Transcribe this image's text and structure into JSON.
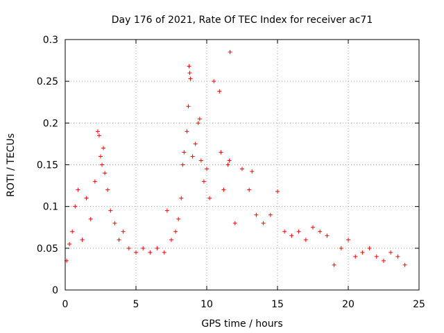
{
  "chart_data": {
    "type": "scatter",
    "title": "Day 176 of 2021, Rate Of TEC Index for receiver ac71",
    "xlabel": "GPS time / hours",
    "ylabel": "ROTI / TECUs",
    "xlim": [
      0,
      25
    ],
    "ylim": [
      0,
      0.3
    ],
    "x_ticks": [
      "0",
      "5",
      "10",
      "15",
      "20",
      "25"
    ],
    "y_ticks": [
      "0",
      "0.05",
      "0.1",
      "0.15",
      "0.2",
      "0.25",
      "0.3"
    ],
    "grid": true,
    "marker": "+",
    "marker_color": "#ff0000",
    "series": [
      {
        "points": [
          [
            0.1,
            0.035
          ],
          [
            0.3,
            0.055
          ],
          [
            0.5,
            0.07
          ],
          [
            0.7,
            0.1
          ],
          [
            0.9,
            0.12
          ],
          [
            1.2,
            0.06
          ],
          [
            1.5,
            0.11
          ],
          [
            1.8,
            0.085
          ],
          [
            2.1,
            0.13
          ],
          [
            2.3,
            0.19
          ],
          [
            2.4,
            0.185
          ],
          [
            2.5,
            0.16
          ],
          [
            2.6,
            0.15
          ],
          [
            2.7,
            0.17
          ],
          [
            2.8,
            0.14
          ],
          [
            3.0,
            0.12
          ],
          [
            3.2,
            0.095
          ],
          [
            3.5,
            0.08
          ],
          [
            3.8,
            0.06
          ],
          [
            4.1,
            0.07
          ],
          [
            4.5,
            0.05
          ],
          [
            5.0,
            0.045
          ],
          [
            5.5,
            0.05
          ],
          [
            6.0,
            0.045
          ],
          [
            6.5,
            0.05
          ],
          [
            7.0,
            0.045
          ],
          [
            7.2,
            0.095
          ],
          [
            7.5,
            0.06
          ],
          [
            7.8,
            0.07
          ],
          [
            8.0,
            0.085
          ],
          [
            8.2,
            0.11
          ],
          [
            8.3,
            0.15
          ],
          [
            8.4,
            0.165
          ],
          [
            8.6,
            0.19
          ],
          [
            8.7,
            0.22
          ],
          [
            8.8,
            0.26
          ],
          [
            8.75,
            0.268
          ],
          [
            8.85,
            0.253
          ],
          [
            9.0,
            0.16
          ],
          [
            9.2,
            0.175
          ],
          [
            9.4,
            0.2
          ],
          [
            9.5,
            0.205
          ],
          [
            9.6,
            0.155
          ],
          [
            9.8,
            0.13
          ],
          [
            10.0,
            0.145
          ],
          [
            10.2,
            0.11
          ],
          [
            10.5,
            0.25
          ],
          [
            10.9,
            0.238
          ],
          [
            11.0,
            0.165
          ],
          [
            11.2,
            0.12
          ],
          [
            11.5,
            0.15
          ],
          [
            11.6,
            0.155
          ],
          [
            11.65,
            0.285
          ],
          [
            12.0,
            0.08
          ],
          [
            12.5,
            0.145
          ],
          [
            13.0,
            0.12
          ],
          [
            13.2,
            0.142
          ],
          [
            13.5,
            0.09
          ],
          [
            14.0,
            0.08
          ],
          [
            14.5,
            0.09
          ],
          [
            15.0,
            0.118
          ],
          [
            15.5,
            0.07
          ],
          [
            16.0,
            0.065
          ],
          [
            16.5,
            0.07
          ],
          [
            17.0,
            0.06
          ],
          [
            17.5,
            0.075
          ],
          [
            18.0,
            0.07
          ],
          [
            18.5,
            0.065
          ],
          [
            19.0,
            0.03
          ],
          [
            19.5,
            0.05
          ],
          [
            20.0,
            0.06
          ],
          [
            20.5,
            0.04
          ],
          [
            21.0,
            0.045
          ],
          [
            21.5,
            0.05
          ],
          [
            22.0,
            0.04
          ],
          [
            22.5,
            0.035
          ],
          [
            23.0,
            0.045
          ],
          [
            23.5,
            0.04
          ],
          [
            24.0,
            0.03
          ]
        ]
      }
    ]
  }
}
